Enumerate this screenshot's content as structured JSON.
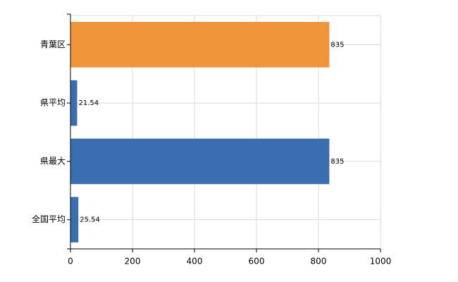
{
  "chart_data": {
    "type": "hbar",
    "categories": [
      "青葉区",
      "県平均",
      "県最大",
      "全国平均"
    ],
    "values": [
      835,
      21.54,
      835,
      25.54
    ],
    "colors": [
      "#f0943a",
      "#3a6eb0",
      "#3a6eb0",
      "#3a6eb0"
    ],
    "xlim": [
      0,
      1000
    ],
    "xticks": [
      0,
      200,
      400,
      600,
      800,
      1000
    ],
    "grid": true
  }
}
